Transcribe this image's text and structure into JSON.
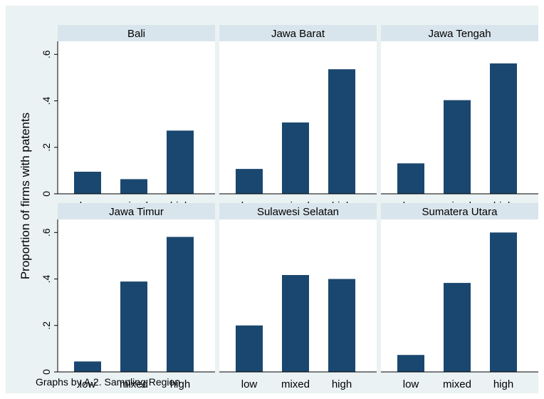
{
  "colors": {
    "outer_bg": "#eaf2f3",
    "plot_bg": "#ffffff",
    "strip_bg": "#d9e5ec",
    "bar": "#1a476f",
    "text": "#000000"
  },
  "chart_data": {
    "type": "bar",
    "layout": "small-multiples 2x3",
    "ylabel": "Proportion of firms with patents",
    "note": "Graphs by A.2. Sampling Region",
    "ylim": [
      0,
      0.65
    ],
    "yticks": [
      0,
      0.2,
      0.4,
      0.6
    ],
    "ytick_labels": [
      "0",
      ".2",
      ".4",
      ".6"
    ],
    "categories": [
      "low",
      "mixed",
      "high"
    ],
    "grid": false,
    "panels": [
      {
        "title": "Bali",
        "values": [
          0.095,
          0.063,
          0.272
        ]
      },
      {
        "title": "Jawa Barat",
        "values": [
          0.107,
          0.307,
          0.536
        ]
      },
      {
        "title": "Jawa Tengah",
        "values": [
          0.131,
          0.403,
          0.561
        ]
      },
      {
        "title": "Jawa Timur",
        "values": [
          0.045,
          0.389,
          0.581
        ]
      },
      {
        "title": "Sulawesi Selatan",
        "values": [
          0.2,
          0.417,
          0.4
        ]
      },
      {
        "title": "Sumatera Utara",
        "values": [
          0.073,
          0.383,
          0.6
        ]
      }
    ]
  }
}
